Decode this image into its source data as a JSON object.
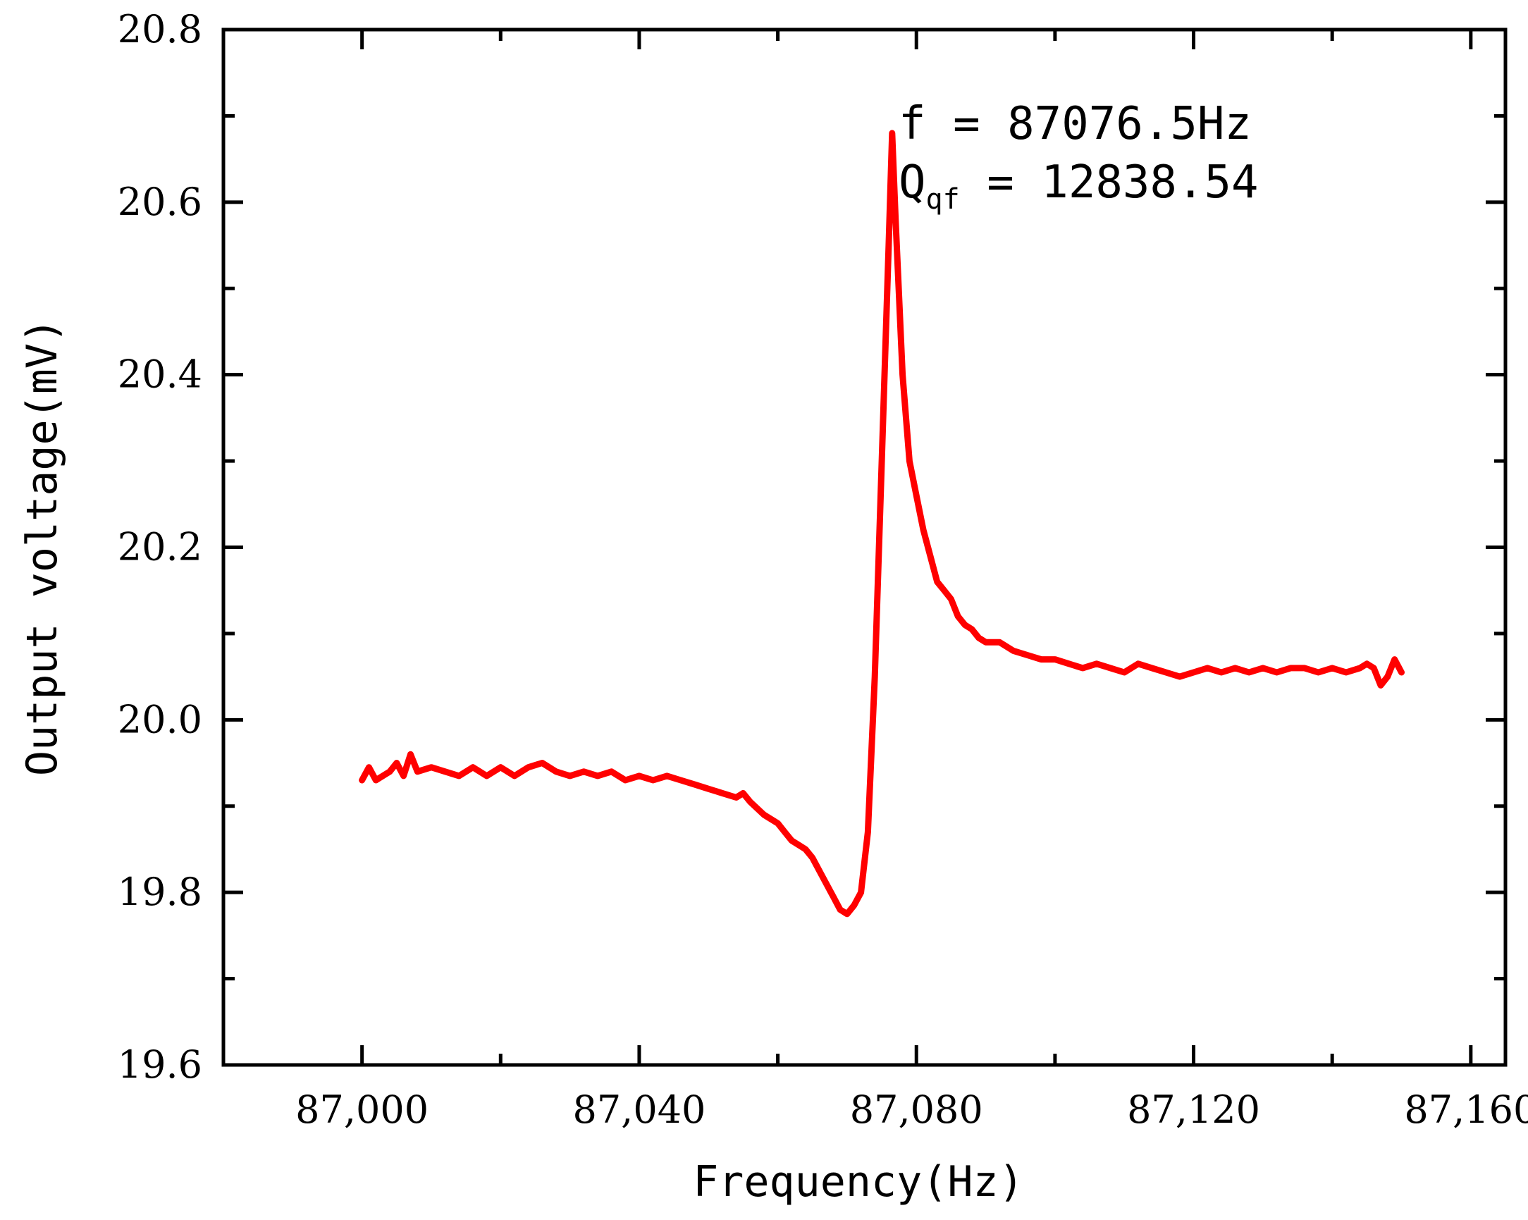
{
  "chart_data": {
    "type": "line",
    "title": "",
    "xlabel": "Frequency(Hz)",
    "ylabel": "Output voltage(mV)",
    "xlim": [
      86980,
      87165
    ],
    "ylim": [
      19.6,
      20.8
    ],
    "x_ticks": [
      87000,
      87040,
      87080,
      87120,
      87160
    ],
    "x_tick_labels": [
      "87,000",
      "87,040",
      "87,080",
      "87,120",
      "87,160"
    ],
    "y_ticks": [
      19.6,
      19.8,
      20.0,
      20.2,
      20.4,
      20.6,
      20.8
    ],
    "y_tick_labels": [
      "19.6",
      "19.8",
      "20.0",
      "20.2",
      "20.4",
      "20.6",
      "20.8"
    ],
    "grid": false,
    "legend": "none",
    "series": [
      {
        "name": "Output voltage",
        "color": "#ff0000",
        "x": [
          87000,
          87001,
          87002,
          87003,
          87004,
          87005,
          87006,
          87007,
          87008,
          87010,
          87012,
          87014,
          87016,
          87018,
          87020,
          87022,
          87024,
          87026,
          87028,
          87030,
          87032,
          87034,
          87036,
          87038,
          87040,
          87042,
          87044,
          87046,
          87048,
          87050,
          87052,
          87054,
          87055,
          87056,
          87058,
          87060,
          87061,
          87062,
          87064,
          87065,
          87066,
          87067,
          87068,
          87069,
          87070,
          87071,
          87072,
          87073,
          87074,
          87075,
          87076,
          87076.5,
          87077,
          87078,
          87079,
          87080,
          87081,
          87082,
          87083,
          87084,
          87085,
          87086,
          87087,
          87088,
          87089,
          87090,
          87092,
          87094,
          87096,
          87098,
          87100,
          87102,
          87104,
          87106,
          87108,
          87110,
          87112,
          87114,
          87116,
          87118,
          87120,
          87122,
          87124,
          87126,
          87128,
          87130,
          87132,
          87134,
          87136,
          87138,
          87140,
          87142,
          87144,
          87145,
          87146,
          87147,
          87148,
          87149,
          87150
        ],
        "y": [
          19.93,
          19.945,
          19.93,
          19.935,
          19.94,
          19.95,
          19.935,
          19.96,
          19.94,
          19.945,
          19.94,
          19.935,
          19.945,
          19.935,
          19.945,
          19.935,
          19.945,
          19.95,
          19.94,
          19.935,
          19.94,
          19.935,
          19.94,
          19.93,
          19.935,
          19.93,
          19.935,
          19.93,
          19.925,
          19.92,
          19.915,
          19.91,
          19.915,
          19.905,
          19.89,
          19.88,
          19.87,
          19.86,
          19.85,
          19.84,
          19.825,
          19.81,
          19.795,
          19.78,
          19.775,
          19.785,
          19.8,
          19.87,
          20.05,
          20.3,
          20.55,
          20.68,
          20.58,
          20.4,
          20.3,
          20.26,
          20.22,
          20.19,
          20.16,
          20.15,
          20.14,
          20.12,
          20.11,
          20.105,
          20.095,
          20.09,
          20.09,
          20.08,
          20.075,
          20.07,
          20.07,
          20.065,
          20.06,
          20.065,
          20.06,
          20.055,
          20.065,
          20.06,
          20.055,
          20.05,
          20.055,
          20.06,
          20.055,
          20.06,
          20.055,
          20.06,
          20.055,
          20.06,
          20.06,
          20.055,
          20.06,
          20.055,
          20.06,
          20.065,
          20.06,
          20.04,
          20.05,
          20.07,
          20.055
        ]
      }
    ],
    "annotations": [
      {
        "lines": [
          "f = 87076.5Hz",
          "Q",
          "qf",
          " = 12838.54"
        ]
      }
    ]
  },
  "annotation": {
    "line1": "f = 87076.5Hz",
    "q_main": "Q",
    "q_sub": "qf",
    "q_rest": " = 12838.54"
  }
}
